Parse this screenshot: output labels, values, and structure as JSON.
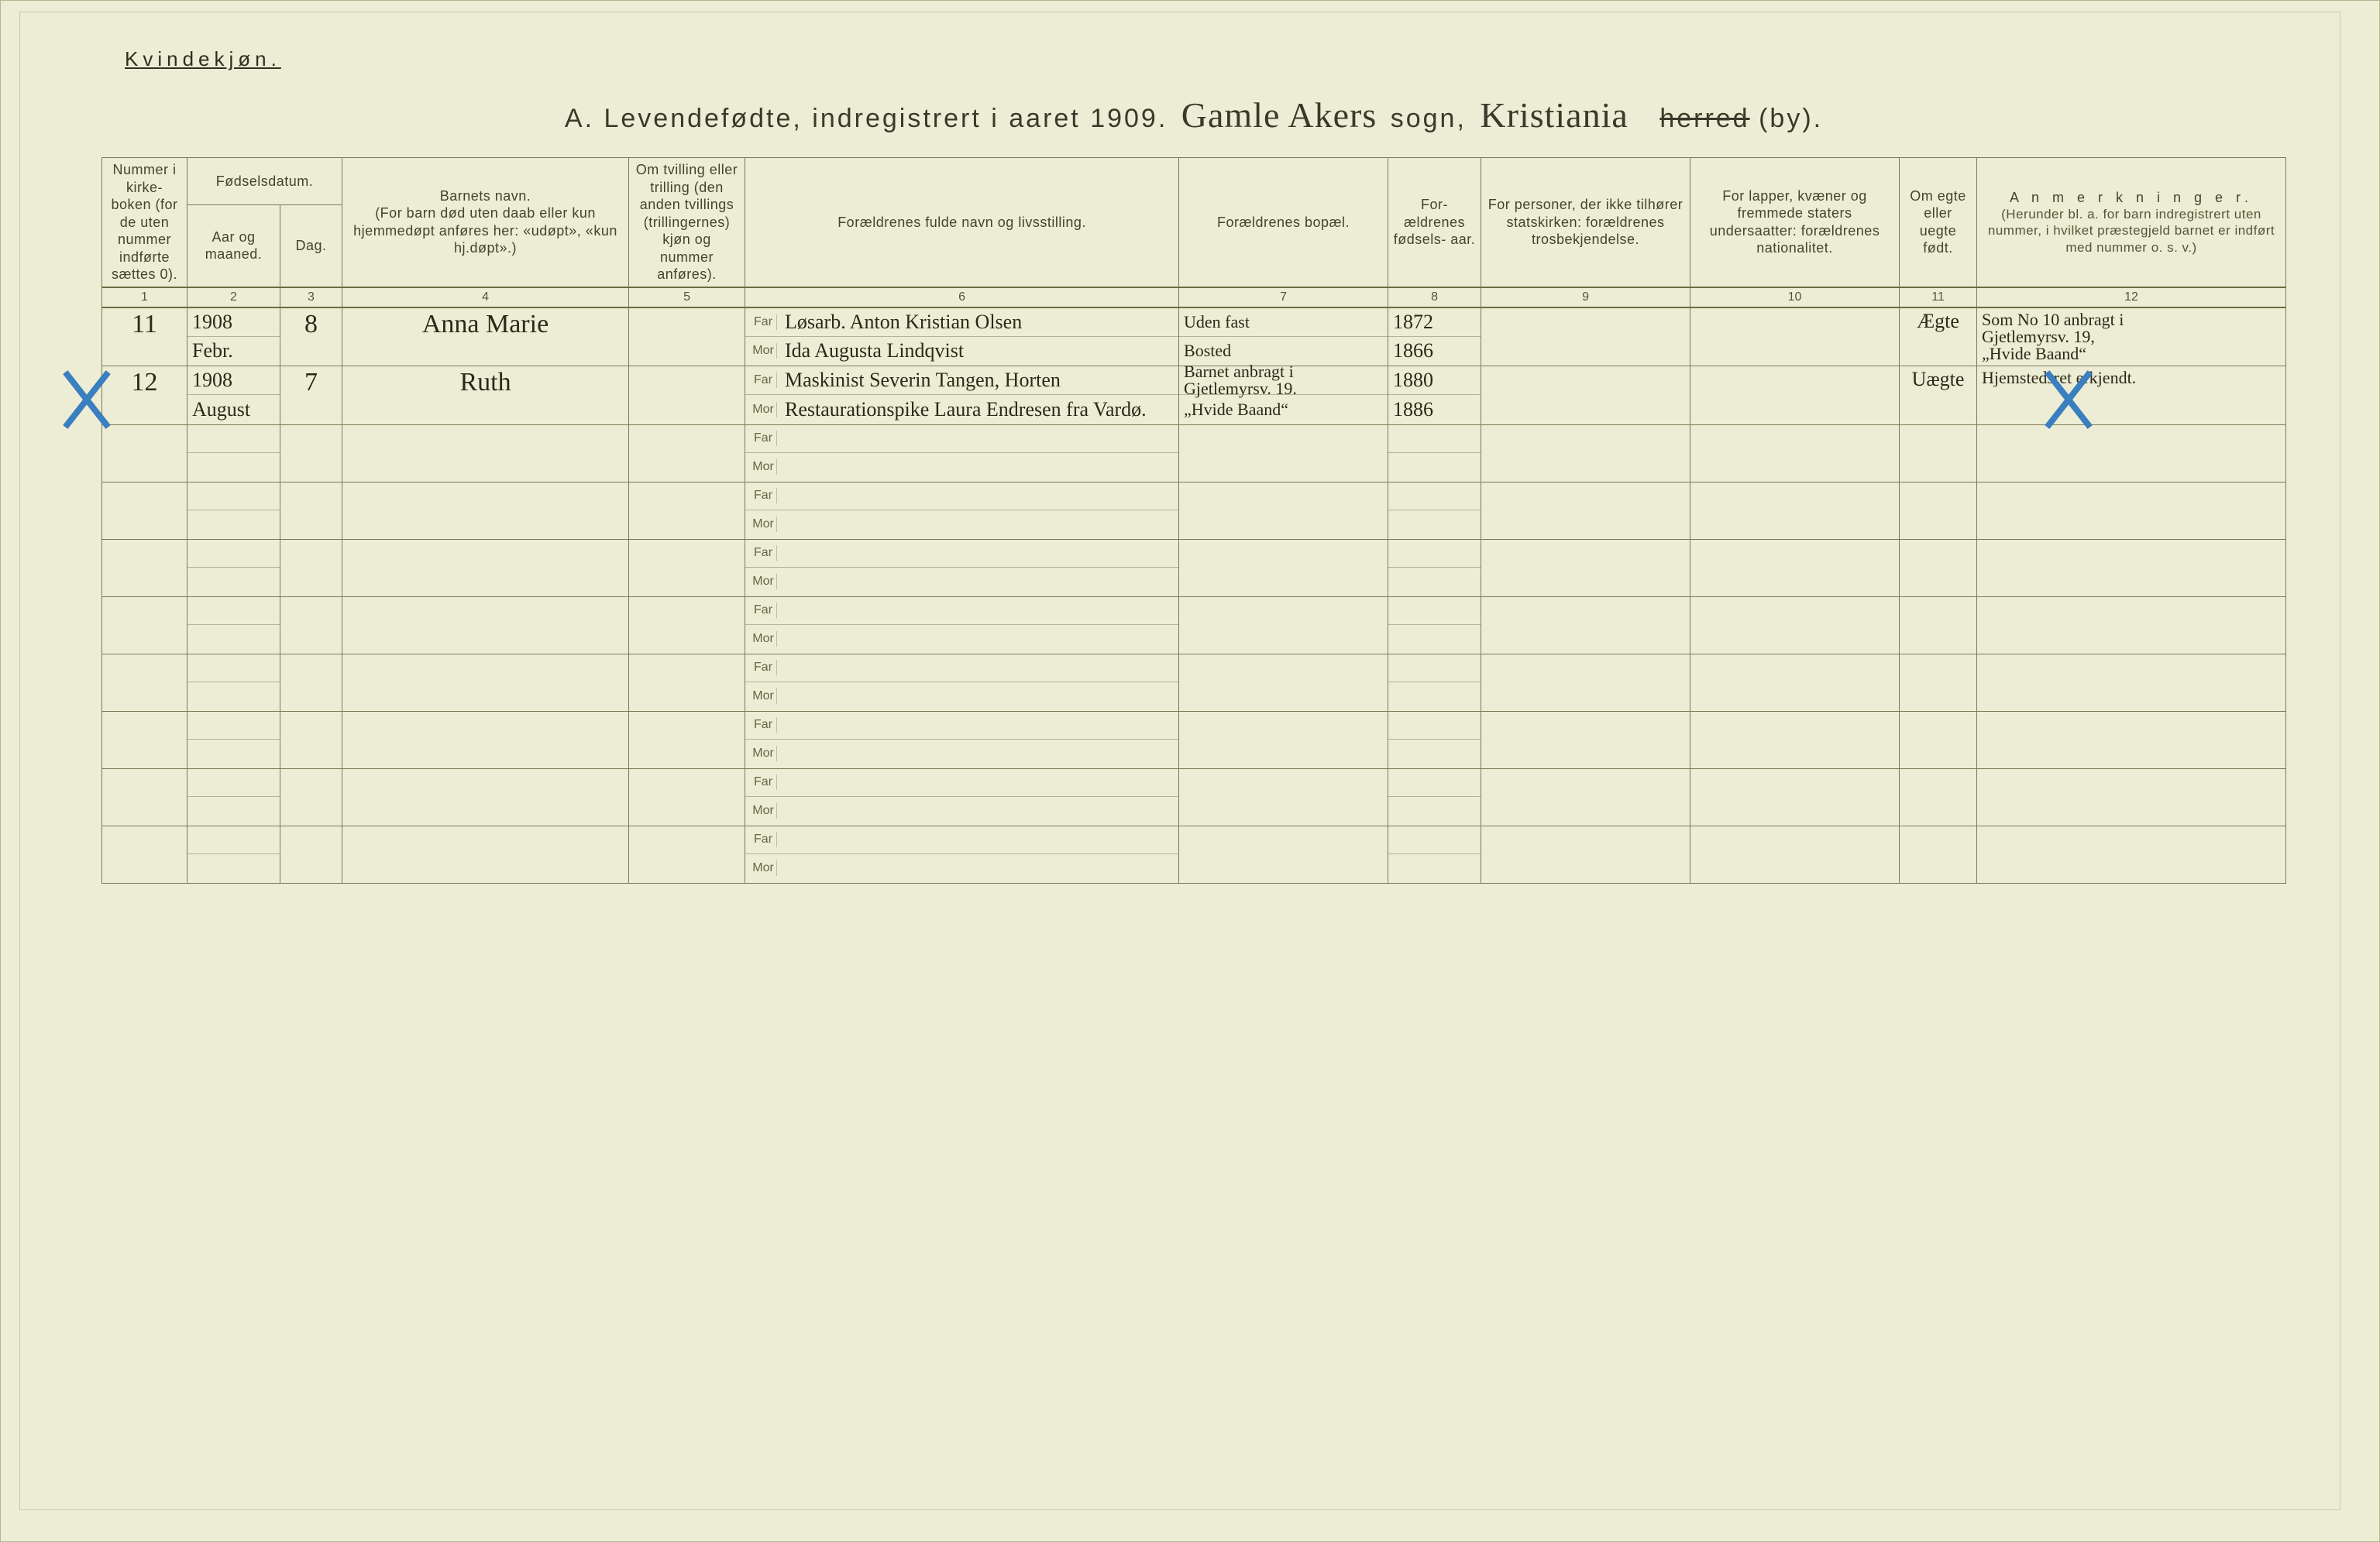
{
  "page": {
    "gender_label": "Kvindekjøn.",
    "title_prefix": "A.  Levendefødte, indregistrert i aaret 19",
    "year_suffix": "09.",
    "sogn_handwritten": "Gamle Akers",
    "sogn_label": "sogn,",
    "by_handwritten": "Kristiania",
    "herred_label": "herred",
    "by_label": "(by)."
  },
  "columns": {
    "c1": "Nummer i kirke- boken (for de uten nummer indførte sættes 0).",
    "c2g": "Fødselsdatum.",
    "c2": "Aar og maaned.",
    "c3": "Dag.",
    "c4": "Barnets navn.\n(For barn død uten daab eller kun hjemmedøpt anføres her: «udøpt», «kun hj.døpt».)",
    "c5": "Om tvilling eller trilling (den anden tvillings (trillingernes) kjøn og nummer anføres).",
    "c6": "Forældrenes fulde navn og livsstilling.",
    "c7": "Forældrenes bopæl.",
    "c8": "For- ældrenes fødsels- aar.",
    "c9": "For personer, der ikke tilhører statskirken: forældrenes trosbekjendelse.",
    "c10": "For lapper, kvæner og fremmede staters undersaatter: forældrenes nationalitet.",
    "c11": "Om egte eller uegte født.",
    "c12h": "A n m e r k n i n g e r.",
    "c12": "(Herunder bl. a. for barn indregistrert uten nummer, i hvilket præstegjeld barnet er indført med nummer o. s. v.)",
    "far": "Far",
    "mor": "Mor"
  },
  "colnums": [
    "1",
    "2",
    "3",
    "4",
    "5",
    "6",
    "7",
    "8",
    "9",
    "10",
    "11",
    "12"
  ],
  "rows": [
    {
      "num": "11",
      "year": "1908",
      "month": "Febr.",
      "day": "8",
      "child": "Anna Marie",
      "far": "Løsarb. Anton Kristian Olsen",
      "mor": "Ida Augusta Lindqvist",
      "bopel_far": "Uden fast",
      "bopel_mor": "Bosted",
      "faar_far": "1872",
      "faar_mor": "1866",
      "egte": "Ægte",
      "anm1": "Som No 10 anbragt i",
      "anm2": "Gjetlemyrsv. 19,",
      "anm3": "„Hvide Baand“",
      "cross_left": false,
      "cross_right": false
    },
    {
      "num": "12",
      "year": "1908",
      "month": "August",
      "day": "7",
      "child": "Ruth",
      "far": "Maskinist Severin Tangen, Horten",
      "mor": "Restaurationspike Laura Endresen fra Vardø.",
      "bopel_far": "Barnet anbragt i Gjetlemyrsv. 19.",
      "bopel_mor": "„Hvide Baand“",
      "faar_far": "1880",
      "faar_mor": "1886",
      "egte": "Uægte",
      "anm1": "Hjemstedsret erkjendt.",
      "anm2": "",
      "anm3": "",
      "cross_left": true,
      "cross_right": true
    }
  ],
  "empty_rows": 8,
  "colors": {
    "paper": "#ededd5",
    "ink": "#2a2a18",
    "rule": "#7a7a55",
    "blue_pencil": "#3a7fbf"
  }
}
